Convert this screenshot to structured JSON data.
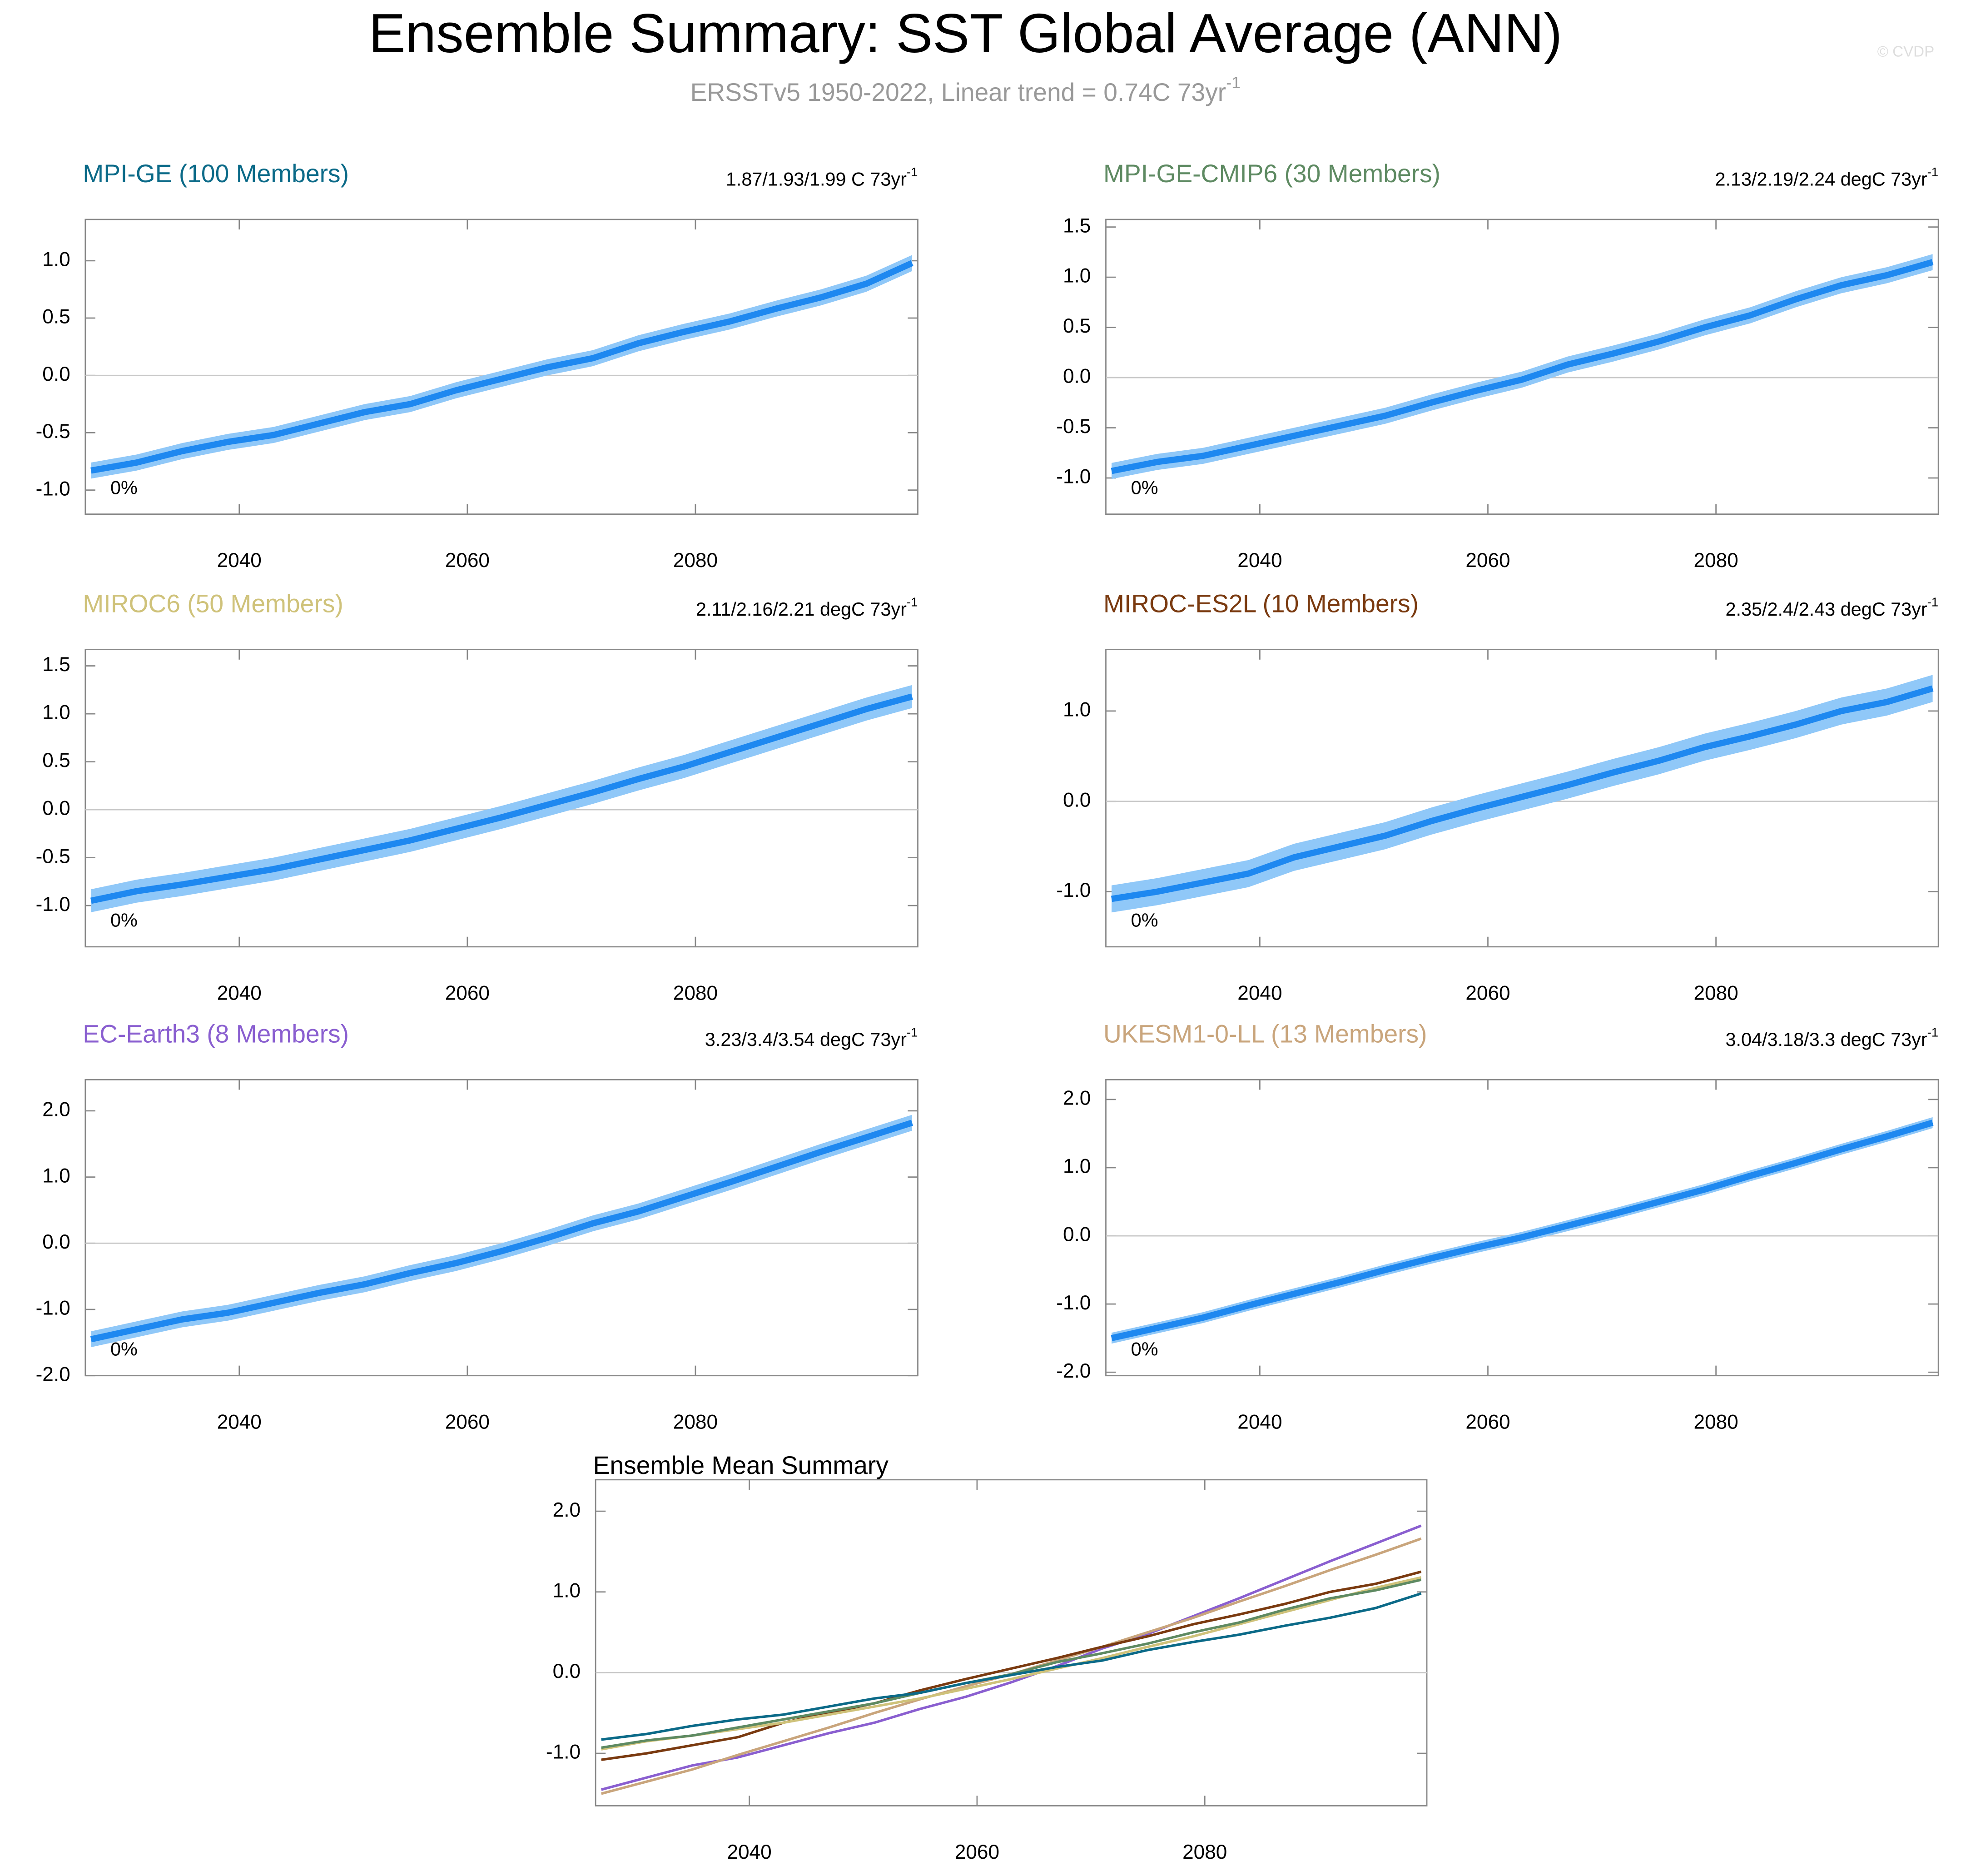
{
  "title": "Ensemble Summary: SST Global Average (ANN)",
  "subtitle": "ERSSTv5 1950-2022, Linear trend = 0.74C 73yr",
  "subtitle_exp": "-1",
  "credit": "© CVDP",
  "chart_data": [
    {
      "type": "line",
      "title": "MPI-GE (100 Members)",
      "title_color": "#0b6a88",
      "trend_label": "1.87/1.93/1.99 C 73yr",
      "trend_label_exp": "-1",
      "annotation": "0%",
      "x": [
        2027,
        2031,
        2035,
        2039,
        2043,
        2047,
        2051,
        2055,
        2059,
        2063,
        2067,
        2071,
        2075,
        2079,
        2083,
        2087,
        2091,
        2095,
        2099
      ],
      "xlim": [
        2026.5,
        2099.5
      ],
      "xticks": [
        2040,
        2060,
        2080
      ],
      "ylim": [
        -1.21,
        1.36
      ],
      "yticks": [
        {
          "value": -1,
          "label": "-1.0"
        },
        {
          "value": -0.5,
          "label": "-0.5"
        },
        {
          "value": 0,
          "label": "0.0"
        },
        {
          "value": 0.5,
          "label": "0.5"
        },
        {
          "value": 1,
          "label": "1.0"
        }
      ],
      "zero_line": true,
      "series": [
        {
          "color": "#1e88f0",
          "band_color": "#90c8f8",
          "values": [
            -0.83,
            -0.76,
            -0.66,
            -0.58,
            -0.52,
            -0.42,
            -0.32,
            -0.25,
            -0.13,
            -0.03,
            0.07,
            0.15,
            0.28,
            0.38,
            0.47,
            0.58,
            0.68,
            0.8,
            0.98
          ],
          "lower": [
            -0.9,
            -0.83,
            -0.73,
            -0.65,
            -0.59,
            -0.49,
            -0.39,
            -0.32,
            -0.2,
            -0.1,
            0,
            0.08,
            0.21,
            0.31,
            0.4,
            0.51,
            0.61,
            0.73,
            0.91
          ],
          "upper": [
            -0.76,
            -0.69,
            -0.59,
            -0.51,
            -0.45,
            -0.35,
            -0.25,
            -0.18,
            -0.06,
            0.04,
            0.14,
            0.22,
            0.35,
            0.45,
            0.54,
            0.65,
            0.75,
            0.87,
            1.05
          ]
        }
      ]
    },
    {
      "type": "line",
      "title": "MPI-GE-CMIP6 (30 Members)",
      "title_color": "#5e8a62",
      "trend_label": "2.13/2.19/2.24 degC 73yr",
      "trend_label_exp": "-1",
      "annotation": "0%",
      "x": [
        2027,
        2031,
        2035,
        2039,
        2043,
        2047,
        2051,
        2055,
        2059,
        2063,
        2067,
        2071,
        2075,
        2079,
        2083,
        2087,
        2091,
        2095,
        2099
      ],
      "xlim": [
        2026.5,
        2099.5
      ],
      "xticks": [
        2040,
        2060,
        2080
      ],
      "ylim": [
        -1.36,
        1.575
      ],
      "yticks": [
        {
          "value": -1,
          "label": "-1.0"
        },
        {
          "value": -0.5,
          "label": "-0.5"
        },
        {
          "value": 0,
          "label": "0.0"
        },
        {
          "value": 0.5,
          "label": "0.5"
        },
        {
          "value": 1,
          "label": "1.0"
        },
        {
          "value": 1.5,
          "label": "1.5"
        }
      ],
      "zero_line": true,
      "series": [
        {
          "color": "#1e88f0",
          "band_color": "#90c8f8",
          "values": [
            -0.93,
            -0.84,
            -0.78,
            -0.68,
            -0.58,
            -0.48,
            -0.38,
            -0.25,
            -0.13,
            -0.02,
            0.13,
            0.24,
            0.36,
            0.5,
            0.62,
            0.78,
            0.92,
            1.02,
            1.15
          ],
          "lower": [
            -1.01,
            -0.92,
            -0.86,
            -0.76,
            -0.66,
            -0.56,
            -0.46,
            -0.33,
            -0.21,
            -0.1,
            0.05,
            0.16,
            0.28,
            0.42,
            0.54,
            0.7,
            0.84,
            0.94,
            1.07
          ],
          "upper": [
            -0.85,
            -0.76,
            -0.7,
            -0.6,
            -0.5,
            -0.4,
            -0.3,
            -0.17,
            -0.05,
            0.06,
            0.21,
            0.32,
            0.44,
            0.58,
            0.7,
            0.86,
            1,
            1.1,
            1.23
          ]
        }
      ]
    },
    {
      "type": "line",
      "title": "MIROC6 (50 Members)",
      "title_color": "#cfc27a",
      "trend_label": "2.11/2.16/2.21 degC 73yr",
      "trend_label_exp": "-1",
      "annotation": "0%",
      "x": [
        2027,
        2031,
        2035,
        2039,
        2043,
        2047,
        2051,
        2055,
        2059,
        2063,
        2067,
        2071,
        2075,
        2079,
        2083,
        2087,
        2091,
        2095,
        2099
      ],
      "xlim": [
        2026.5,
        2099.5
      ],
      "xticks": [
        2040,
        2060,
        2080
      ],
      "ylim": [
        -1.43,
        1.67
      ],
      "yticks": [
        {
          "value": -1,
          "label": "-1.0"
        },
        {
          "value": -0.5,
          "label": "-0.5"
        },
        {
          "value": 0,
          "label": "0.0"
        },
        {
          "value": 0.5,
          "label": "0.5"
        },
        {
          "value": 1,
          "label": "1.0"
        },
        {
          "value": 1.5,
          "label": "1.5"
        }
      ],
      "zero_line": true,
      "series": [
        {
          "color": "#1e88f0",
          "band_color": "#90c8f8",
          "values": [
            -0.95,
            -0.85,
            -0.78,
            -0.7,
            -0.62,
            -0.52,
            -0.42,
            -0.32,
            -0.2,
            -0.08,
            0.05,
            0.18,
            0.32,
            0.45,
            0.6,
            0.75,
            0.9,
            1.05,
            1.18
          ],
          "lower": [
            -1.07,
            -0.97,
            -0.9,
            -0.82,
            -0.74,
            -0.64,
            -0.54,
            -0.44,
            -0.32,
            -0.2,
            -0.07,
            0.06,
            0.2,
            0.33,
            0.48,
            0.63,
            0.78,
            0.93,
            1.06
          ],
          "upper": [
            -0.83,
            -0.73,
            -0.66,
            -0.58,
            -0.5,
            -0.4,
            -0.3,
            -0.2,
            -0.08,
            0.04,
            0.17,
            0.3,
            0.44,
            0.57,
            0.72,
            0.87,
            1.02,
            1.17,
            1.3
          ]
        }
      ]
    },
    {
      "type": "line",
      "title": "MIROC-ES2L (10 Members)",
      "title_color": "#7a3a10",
      "trend_label": "2.35/2.4/2.43 degC 73yr",
      "trend_label_exp": "-1",
      "annotation": "0%",
      "x": [
        2027,
        2031,
        2035,
        2039,
        2043,
        2047,
        2051,
        2055,
        2059,
        2063,
        2067,
        2071,
        2075,
        2079,
        2083,
        2087,
        2091,
        2095,
        2099
      ],
      "xlim": [
        2026.5,
        2099.5
      ],
      "xticks": [
        2040,
        2060,
        2080
      ],
      "ylim": [
        -1.61,
        1.68
      ],
      "yticks": [
        {
          "value": -1,
          "label": "-1.0"
        },
        {
          "value": 0,
          "label": "0.0"
        },
        {
          "value": 1,
          "label": "1.0"
        }
      ],
      "zero_line": true,
      "series": [
        {
          "color": "#1e88f0",
          "band_color": "#90c8f8",
          "values": [
            -1.08,
            -1,
            -0.9,
            -0.8,
            -0.62,
            -0.5,
            -0.38,
            -0.22,
            -0.08,
            0.05,
            0.18,
            0.32,
            0.45,
            0.6,
            0.72,
            0.85,
            1,
            1.1,
            1.25
          ],
          "lower": [
            -1.23,
            -1.15,
            -1.05,
            -0.95,
            -0.77,
            -0.65,
            -0.53,
            -0.37,
            -0.23,
            -0.1,
            0.03,
            0.17,
            0.3,
            0.45,
            0.57,
            0.7,
            0.85,
            0.95,
            1.1
          ],
          "upper": [
            -0.93,
            -0.85,
            -0.75,
            -0.65,
            -0.47,
            -0.35,
            -0.23,
            -0.07,
            0.07,
            0.2,
            0.33,
            0.47,
            0.6,
            0.75,
            0.87,
            1,
            1.15,
            1.25,
            1.4
          ]
        }
      ]
    },
    {
      "type": "line",
      "title": "EC-Earth3 (8 Members)",
      "title_color": "#8a5fd0",
      "trend_label": "3.23/3.4/3.54 degC 73yr",
      "trend_label_exp": "-1",
      "annotation": "0%",
      "x": [
        2027,
        2031,
        2035,
        2039,
        2043,
        2047,
        2051,
        2055,
        2059,
        2063,
        2067,
        2071,
        2075,
        2079,
        2083,
        2087,
        2091,
        2095,
        2099
      ],
      "xlim": [
        2026.5,
        2099.5
      ],
      "xticks": [
        2040,
        2060,
        2080
      ],
      "ylim": [
        -2.0,
        2.47
      ],
      "yticks": [
        {
          "value": -2,
          "label": "-2.0"
        },
        {
          "value": -1,
          "label": "-1.0"
        },
        {
          "value": 0,
          "label": "0.0"
        },
        {
          "value": 1,
          "label": "1.0"
        },
        {
          "value": 2,
          "label": "2.0"
        }
      ],
      "zero_line": true,
      "series": [
        {
          "color": "#1e88f0",
          "band_color": "#90c8f8",
          "values": [
            -1.45,
            -1.3,
            -1.15,
            -1.05,
            -0.9,
            -0.75,
            -0.62,
            -0.45,
            -0.3,
            -0.12,
            0.08,
            0.3,
            0.48,
            0.7,
            0.92,
            1.15,
            1.38,
            1.6,
            1.82
          ],
          "lower": [
            -1.57,
            -1.42,
            -1.27,
            -1.17,
            -1.02,
            -0.87,
            -0.74,
            -0.57,
            -0.42,
            -0.24,
            -0.04,
            0.18,
            0.36,
            0.58,
            0.8,
            1.03,
            1.26,
            1.48,
            1.7
          ],
          "upper": [
            -1.33,
            -1.18,
            -1.03,
            -0.93,
            -0.78,
            -0.63,
            -0.5,
            -0.33,
            -0.18,
            0,
            0.2,
            0.42,
            0.6,
            0.82,
            1.04,
            1.27,
            1.5,
            1.72,
            1.94
          ]
        }
      ]
    },
    {
      "type": "line",
      "title": "UKESM1-0-LL (13 Members)",
      "title_color": "#c9a57c",
      "trend_label": "3.04/3.18/3.3 degC 73yr",
      "trend_label_exp": "-1",
      "annotation": "0%",
      "x": [
        2027,
        2031,
        2035,
        2039,
        2043,
        2047,
        2051,
        2055,
        2059,
        2063,
        2067,
        2071,
        2075,
        2079,
        2083,
        2087,
        2091,
        2095,
        2099
      ],
      "xlim": [
        2026.5,
        2099.5
      ],
      "xticks": [
        2040,
        2060,
        2080
      ],
      "ylim": [
        -2.05,
        2.29
      ],
      "yticks": [
        {
          "value": -2,
          "label": "-2.0"
        },
        {
          "value": -1,
          "label": "-1.0"
        },
        {
          "value": 0,
          "label": "0.0"
        },
        {
          "value": 1,
          "label": "1.0"
        },
        {
          "value": 2,
          "label": "2.0"
        }
      ],
      "zero_line": true,
      "series": [
        {
          "color": "#1e88f0",
          "band_color": "#90c8f8",
          "values": [
            -1.5,
            -1.35,
            -1.2,
            -1.02,
            -0.85,
            -0.68,
            -0.5,
            -0.33,
            -0.17,
            -0.02,
            0.15,
            0.32,
            0.5,
            0.68,
            0.88,
            1.07,
            1.27,
            1.46,
            1.66
          ],
          "lower": [
            -1.58,
            -1.43,
            -1.28,
            -1.1,
            -0.93,
            -0.76,
            -0.58,
            -0.41,
            -0.25,
            -0.1,
            0.07,
            0.24,
            0.42,
            0.6,
            0.8,
            0.99,
            1.19,
            1.38,
            1.58
          ],
          "upper": [
            -1.42,
            -1.27,
            -1.12,
            -0.94,
            -0.77,
            -0.6,
            -0.42,
            -0.25,
            -0.09,
            0.06,
            0.23,
            0.4,
            0.58,
            0.76,
            0.96,
            1.15,
            1.35,
            1.54,
            1.74
          ]
        }
      ]
    },
    {
      "type": "line",
      "title": "Ensemble Mean Summary",
      "x": [
        2027,
        2031,
        2035,
        2039,
        2043,
        2047,
        2051,
        2055,
        2059,
        2063,
        2067,
        2071,
        2075,
        2079,
        2083,
        2087,
        2091,
        2095,
        2099
      ],
      "xlim": [
        2026.5,
        2099.5
      ],
      "xticks": [
        2040,
        2060,
        2080
      ],
      "ylim": [
        -1.65,
        2.39
      ],
      "yticks": [
        {
          "value": -1,
          "label": "-1.0"
        },
        {
          "value": 0,
          "label": "0.0"
        },
        {
          "value": 1,
          "label": "1.0"
        },
        {
          "value": 2,
          "label": "2.0"
        }
      ],
      "zero_line": true,
      "series": [
        {
          "color": "#8a5fd0",
          "values": [
            -1.45,
            -1.3,
            -1.15,
            -1.05,
            -0.9,
            -0.75,
            -0.62,
            -0.45,
            -0.3,
            -0.12,
            0.08,
            0.3,
            0.48,
            0.7,
            0.92,
            1.15,
            1.38,
            1.6,
            1.82
          ]
        },
        {
          "color": "#c9a57c",
          "values": [
            -1.5,
            -1.35,
            -1.2,
            -1.02,
            -0.85,
            -0.68,
            -0.5,
            -0.33,
            -0.17,
            -0.02,
            0.15,
            0.32,
            0.5,
            0.68,
            0.88,
            1.07,
            1.27,
            1.46,
            1.66
          ]
        },
        {
          "color": "#7a3a10",
          "values": [
            -1.08,
            -1,
            -0.9,
            -0.8,
            -0.62,
            -0.5,
            -0.38,
            -0.22,
            -0.08,
            0.05,
            0.18,
            0.32,
            0.45,
            0.6,
            0.72,
            0.85,
            1,
            1.1,
            1.25
          ]
        },
        {
          "color": "#cfc27a",
          "values": [
            -0.95,
            -0.85,
            -0.78,
            -0.7,
            -0.62,
            -0.52,
            -0.42,
            -0.32,
            -0.2,
            -0.08,
            0.05,
            0.18,
            0.32,
            0.45,
            0.6,
            0.75,
            0.9,
            1.05,
            1.18
          ]
        },
        {
          "color": "#5e8a62",
          "values": [
            -0.93,
            -0.84,
            -0.78,
            -0.68,
            -0.58,
            -0.48,
            -0.38,
            -0.25,
            -0.13,
            -0.02,
            0.13,
            0.24,
            0.36,
            0.5,
            0.62,
            0.78,
            0.92,
            1.02,
            1.15
          ]
        },
        {
          "color": "#0b6a88",
          "values": [
            -0.83,
            -0.76,
            -0.66,
            -0.58,
            -0.52,
            -0.42,
            -0.32,
            -0.25,
            -0.13,
            -0.03,
            0.07,
            0.15,
            0.28,
            0.38,
            0.47,
            0.58,
            0.68,
            0.8,
            0.98
          ]
        }
      ]
    }
  ]
}
